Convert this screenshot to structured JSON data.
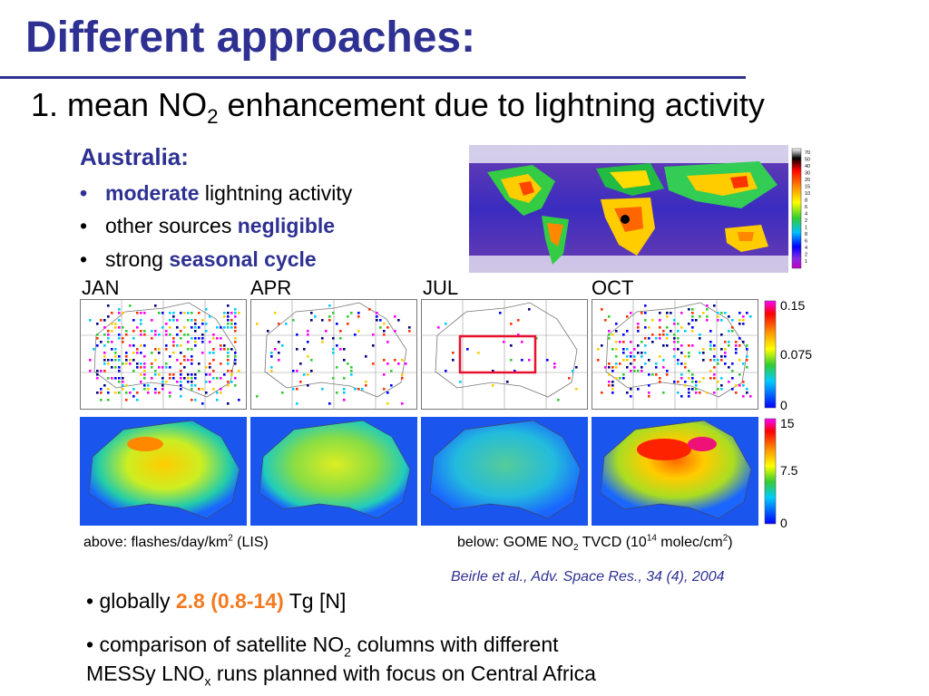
{
  "title": "Different approaches:",
  "subtitle": {
    "pre": "1. mean NO",
    "sub": "2",
    "post": " enhancement due to lightning activity"
  },
  "australia": {
    "heading": "Australia:",
    "bullets": [
      {
        "dot": "•",
        "bold": "moderate",
        "text": " lightning activity"
      },
      {
        "dot": "•",
        "text": "other sources ",
        "bold": "negligible"
      },
      {
        "dot": "•",
        "text": "strong ",
        "bold": "seasonal cycle"
      }
    ]
  },
  "world_map": {
    "scale_labels": [
      "70",
      "50",
      "40",
      "30",
      "20",
      "15",
      "10",
      "8",
      "6",
      "4",
      "2",
      "1",
      "8",
      "6",
      "4",
      "2",
      "1"
    ]
  },
  "months": [
    "JAN",
    "APR",
    "JUL",
    "OCT"
  ],
  "colorbar_top": {
    "max": "0.15",
    "mid": "0.075",
    "min": "0"
  },
  "colorbar_bottom": {
    "max": "15",
    "mid": "7.5",
    "min": "0"
  },
  "caption_left": {
    "pre": "above: flashes/day/km",
    "sup": "2",
    "post": " (LIS)"
  },
  "caption_right": {
    "pre": "below: GOME NO",
    "sub": "2",
    "mid": " TVCD (10",
    "sup": "14",
    "mid2": " molec/cm",
    "sup2": "2",
    "post": ")"
  },
  "citation": "Beirle et al., Adv. Space Res., 34 (4), 2004",
  "globally": {
    "pre": "• globally ",
    "value": "2.8 (0.8-14)",
    "post": " Tg [N]"
  },
  "comparison": {
    "line1_pre": "• comparison of satellite NO",
    "line1_sub": "2",
    "line1_post": " columns with different",
    "line2_pre": "MESSy LNO",
    "line2_sub": "x",
    "line2_post": " runs planned with focus on Central Africa"
  },
  "colors": {
    "title": "#2e3192",
    "accent": "#f47a20",
    "box": "#e8102e"
  }
}
